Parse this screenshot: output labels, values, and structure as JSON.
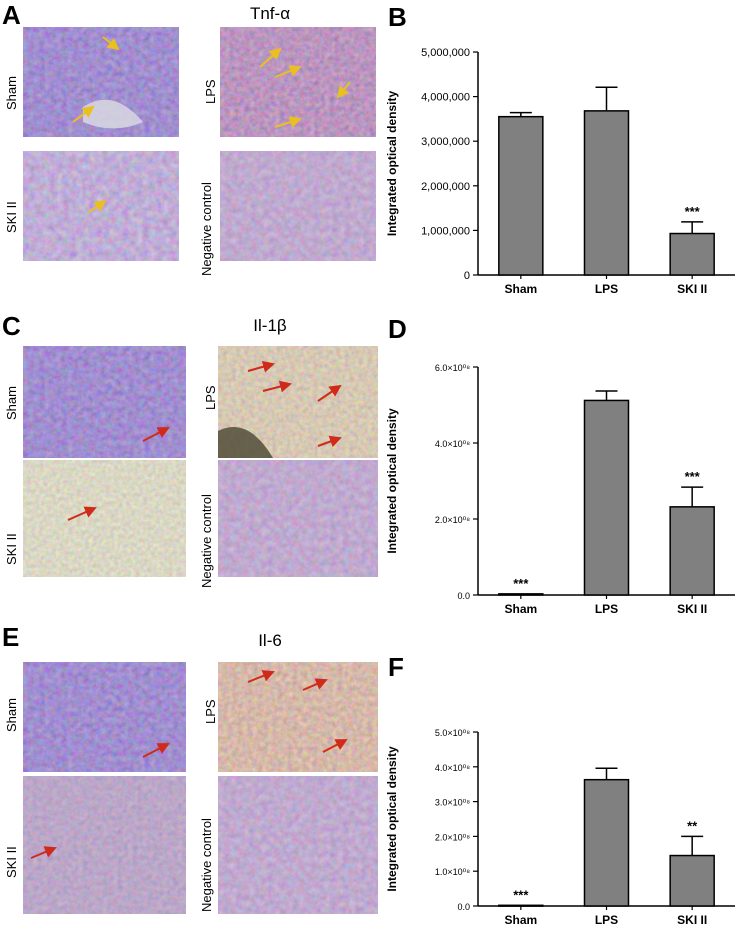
{
  "panels": {
    "A": "A",
    "B": "B",
    "C": "C",
    "D": "D",
    "E": "E",
    "F": "F"
  },
  "titles": {
    "tnf": "Tnf-α",
    "il1b": "Il-1β",
    "il6": "Il-6"
  },
  "image_labels": {
    "sham": "Sham",
    "lps": "LPS",
    "ski": "SKI II",
    "neg": "Negative control"
  },
  "colors": {
    "bar_fill": "#808080",
    "bar_stroke": "#000000",
    "stain_blue": "#4b3f96",
    "stain_brown": "#8a4a2a",
    "arrow_yellow": "#e8c020",
    "arrow_red": "#d02a1a"
  },
  "chart_data": [
    {
      "id": "B",
      "type": "bar",
      "ylabel": "Integrated optical density",
      "categories": [
        "Sham",
        "LPS",
        "SKI II"
      ],
      "values": [
        3550000,
        3680000,
        930000
      ],
      "errors": [
        90000,
        530000,
        260000
      ],
      "significance": [
        "",
        "",
        "***"
      ],
      "ylim": [
        0,
        5000000
      ],
      "yticks": [
        0,
        1000000,
        2000000,
        3000000,
        4000000,
        5000000
      ],
      "yticklabels": [
        "0",
        "1,000,000",
        "2,000,000",
        "3,000,000",
        "4,000,000",
        "5,000,000"
      ]
    },
    {
      "id": "D",
      "type": "bar",
      "ylabel": "Integrated optical density",
      "categories": [
        "Sham",
        "LPS",
        "SKI II"
      ],
      "values": [
        0.03,
        5.12,
        2.32
      ],
      "errors": [
        0,
        0.25,
        0.52
      ],
      "significance": [
        "***",
        "",
        "***"
      ],
      "ylim": [
        0,
        6
      ],
      "yticks": [
        0,
        2,
        4,
        6
      ],
      "yticklabels": [
        "0.0",
        "2.0×10⁰⁸",
        "4.0×10⁰⁸",
        "6.0×10⁰⁸"
      ]
    },
    {
      "id": "F",
      "type": "bar",
      "ylabel": "Integrated optical density",
      "categories": [
        "Sham",
        "LPS",
        "SKI II"
      ],
      "values": [
        0.02,
        3.63,
        1.45
      ],
      "errors": [
        0,
        0.33,
        0.55
      ],
      "significance": [
        "***",
        "",
        "**"
      ],
      "ylim": [
        0,
        5
      ],
      "yticks": [
        0,
        1,
        2,
        3,
        4,
        5
      ],
      "yticklabels": [
        "0.0",
        "1.0×10⁰⁸",
        "2.0×10⁰⁸",
        "3.0×10⁰⁸",
        "4.0×10⁰⁸",
        "5.0×10⁰⁸"
      ]
    }
  ]
}
